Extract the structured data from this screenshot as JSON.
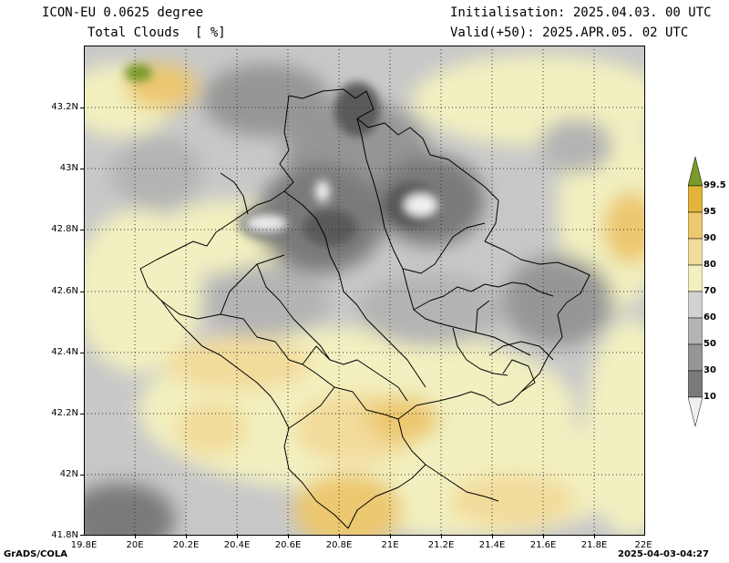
{
  "header": {
    "model": "ICON-EU 0.0625 degree",
    "variable": "Total Clouds  [ %]",
    "initialisation": "Initialisation: 2025.04.03. 00 UTC",
    "valid": "Valid(+50): 2025.APR.05. 02 UTC"
  },
  "axes": {
    "x_ticks": [
      "19.8E",
      "20E",
      "20.2E",
      "20.4E",
      "20.6E",
      "20.8E",
      "21E",
      "21.2E",
      "21.4E",
      "21.6E",
      "21.8E",
      "22E"
    ],
    "y_ticks": [
      "43.2N",
      "43N",
      "42.8N",
      "42.6N",
      "42.4N",
      "42.2N",
      "42N",
      "41.8N"
    ]
  },
  "colorbar": {
    "levels": [
      "99.5",
      "95",
      "90",
      "80",
      "70",
      "60",
      "50",
      "30",
      "10"
    ],
    "colors": [
      "#7a9a2a",
      "#e2b43a",
      "#ecc870",
      "#f2dc9c",
      "#f2f0c0",
      "#d2d2d2",
      "#b4b4b4",
      "#969696",
      "#7a7a7a",
      "#5a5a5a",
      "#f0f0f0"
    ]
  },
  "footer": {
    "left": "GrADS/COLA",
    "right": "2025-04-03-04:27"
  },
  "map": {
    "extent": {
      "lon_min": 19.8,
      "lon_max": 22.0,
      "lat_min": 41.8,
      "lat_max": 43.4
    }
  }
}
